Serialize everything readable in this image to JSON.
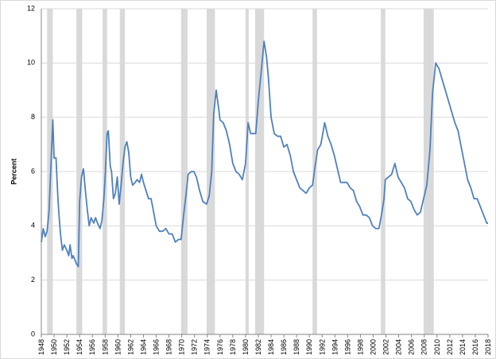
{
  "chart_data": {
    "type": "line",
    "y_label": "Percent",
    "x": [
      1948.0,
      1948.3,
      1948.6,
      1948.9,
      1949.2,
      1949.5,
      1949.8,
      1950.0,
      1950.3,
      1950.6,
      1950.8,
      1951.0,
      1951.3,
      1951.6,
      1952.0,
      1952.3,
      1952.5,
      1952.8,
      1953.0,
      1953.5,
      1953.8,
      1954.0,
      1954.3,
      1954.6,
      1954.9,
      1955.2,
      1955.5,
      1955.8,
      1956.2,
      1956.5,
      1956.8,
      1957.2,
      1957.5,
      1957.8,
      1958.0,
      1958.3,
      1958.5,
      1958.8,
      1959.0,
      1959.3,
      1959.6,
      1959.9,
      1960.2,
      1960.5,
      1960.8,
      1961.1,
      1961.4,
      1961.7,
      1962.0,
      1962.3,
      1962.7,
      1963.0,
      1963.4,
      1963.7,
      1964.0,
      1964.4,
      1964.8,
      1965.2,
      1965.6,
      1966.0,
      1966.5,
      1967.0,
      1967.5,
      1968.0,
      1968.5,
      1969.0,
      1969.5,
      1969.9,
      1970.3,
      1970.7,
      1971.0,
      1971.5,
      1971.9,
      1972.3,
      1972.8,
      1973.3,
      1973.9,
      1974.3,
      1974.7,
      1975.0,
      1975.4,
      1975.8,
      1976.0,
      1976.5,
      1977.0,
      1977.5,
      1978.0,
      1978.5,
      1979.0,
      1979.5,
      1980.0,
      1980.4,
      1980.8,
      1981.2,
      1981.6,
      1982.0,
      1982.5,
      1982.9,
      1983.3,
      1983.6,
      1984.0,
      1984.5,
      1985.0,
      1985.5,
      1986.0,
      1986.5,
      1987.0,
      1987.5,
      1988.0,
      1988.5,
      1989.0,
      1989.5,
      1990.0,
      1990.5,
      1990.9,
      1991.3,
      1991.8,
      1992.4,
      1992.9,
      1993.4,
      1993.9,
      1994.4,
      1994.9,
      1995.4,
      1995.9,
      1996.4,
      1996.9,
      1997.4,
      1997.9,
      1998.4,
      1998.9,
      1999.4,
      1999.9,
      2000.4,
      2000.9,
      2001.3,
      2001.7,
      2001.9,
      2002.4,
      2002.9,
      2003.4,
      2003.9,
      2004.4,
      2004.9,
      2005.4,
      2005.9,
      2006.4,
      2006.9,
      2007.4,
      2007.9,
      2008.4,
      2008.9,
      2009.3,
      2009.8,
      2010.3,
      2010.8,
      2011.3,
      2011.8,
      2012.3,
      2012.8,
      2013.3,
      2013.8,
      2014.3,
      2014.8,
      2015.3,
      2015.8,
      2016.3,
      2016.8,
      2017.3,
      2017.8,
      2018.0
    ],
    "series": [
      {
        "color": "#4f81bd",
        "values": [
          3.4,
          3.9,
          3.6,
          3.8,
          4.5,
          6.2,
          7.9,
          6.5,
          6.5,
          5.0,
          4.3,
          3.7,
          3.1,
          3.3,
          3.1,
          2.9,
          3.3,
          2.8,
          2.9,
          2.6,
          2.5,
          4.9,
          5.8,
          6.1,
          5.3,
          4.6,
          4.0,
          4.3,
          4.1,
          4.3,
          4.1,
          3.9,
          4.2,
          5.0,
          5.8,
          7.4,
          7.5,
          6.2,
          6.0,
          5.0,
          5.2,
          5.8,
          4.8,
          5.5,
          6.3,
          6.9,
          7.1,
          6.7,
          5.8,
          5.5,
          5.6,
          5.7,
          5.6,
          5.9,
          5.6,
          5.3,
          5.0,
          5.0,
          4.5,
          4.0,
          3.8,
          3.8,
          3.9,
          3.7,
          3.7,
          3.4,
          3.5,
          3.5,
          4.4,
          5.2,
          5.9,
          6.0,
          6.0,
          5.8,
          5.3,
          4.9,
          4.8,
          5.1,
          6.0,
          8.1,
          9.0,
          8.3,
          7.9,
          7.8,
          7.5,
          7.0,
          6.3,
          6.0,
          5.9,
          5.7,
          6.3,
          7.8,
          7.4,
          7.4,
          7.4,
          8.6,
          9.8,
          10.8,
          10.2,
          9.4,
          8.0,
          7.4,
          7.3,
          7.3,
          6.9,
          7.0,
          6.6,
          6.0,
          5.7,
          5.4,
          5.3,
          5.2,
          5.4,
          5.5,
          6.2,
          6.8,
          7.0,
          7.8,
          7.3,
          7.0,
          6.6,
          6.1,
          5.6,
          5.6,
          5.6,
          5.4,
          5.3,
          4.9,
          4.7,
          4.4,
          4.4,
          4.3,
          4.0,
          3.9,
          3.9,
          4.4,
          5.0,
          5.7,
          5.8,
          5.9,
          6.3,
          5.8,
          5.6,
          5.4,
          5.0,
          4.9,
          4.6,
          4.4,
          4.5,
          5.0,
          5.5,
          6.8,
          8.9,
          10.0,
          9.8,
          9.4,
          9.0,
          8.6,
          8.2,
          7.8,
          7.5,
          6.9,
          6.3,
          5.7,
          5.4,
          5.0,
          5.0,
          4.7,
          4.4,
          4.1,
          4.1
        ]
      }
    ],
    "recessions": [
      [
        1948.9,
        1949.8
      ],
      [
        1953.5,
        1954.4
      ],
      [
        1957.6,
        1958.3
      ],
      [
        1960.3,
        1961.1
      ],
      [
        1969.9,
        1970.9
      ],
      [
        1973.9,
        1975.2
      ],
      [
        1980.0,
        1980.5
      ],
      [
        1981.5,
        1982.9
      ],
      [
        1990.5,
        1991.2
      ],
      [
        2001.2,
        2001.9
      ],
      [
        2007.9,
        2009.5
      ]
    ],
    "recession_color": "#d9d9d9",
    "xlim": [
      1948,
      2018
    ],
    "xticks": [
      1948,
      1950,
      1952,
      1954,
      1956,
      1958,
      1960,
      1962,
      1964,
      1966,
      1968,
      1970,
      1972,
      1974,
      1976,
      1978,
      1980,
      1982,
      1984,
      1986,
      1988,
      1990,
      1992,
      1994,
      1996,
      1998,
      2000,
      2002,
      2004,
      2006,
      2008,
      2010,
      2012,
      2014,
      2016,
      2018
    ],
    "ylim": [
      0,
      12
    ],
    "yticks": [
      0,
      2,
      4,
      6,
      8,
      10,
      12
    ],
    "grid": true
  }
}
